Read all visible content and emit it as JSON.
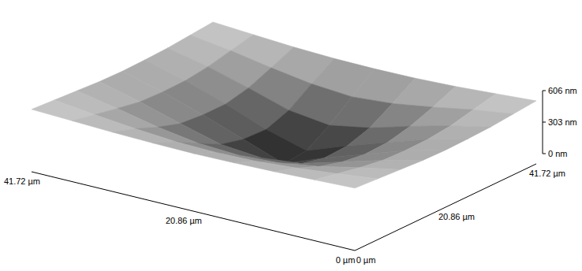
{
  "chart_data": {
    "type": "surface",
    "x": [
      0,
      5.215,
      10.43,
      15.645,
      20.86,
      26.075,
      31.29,
      36.505,
      41.72
    ],
    "y": [
      0,
      5.215,
      10.43,
      15.645,
      20.86,
      26.075,
      31.29,
      36.505,
      41.72
    ],
    "heights": [
      [
        600,
        585,
        570,
        560,
        555,
        560,
        570,
        585,
        600
      ],
      [
        585,
        540,
        500,
        470,
        460,
        470,
        500,
        540,
        585
      ],
      [
        570,
        495,
        410,
        350,
        330,
        350,
        410,
        495,
        570
      ],
      [
        555,
        460,
        350,
        240,
        200,
        235,
        340,
        455,
        555
      ],
      [
        550,
        450,
        320,
        190,
        40,
        180,
        320,
        445,
        550
      ],
      [
        555,
        455,
        330,
        200,
        60,
        170,
        320,
        450,
        555
      ],
      [
        565,
        480,
        380,
        270,
        200,
        250,
        370,
        480,
        565
      ],
      [
        585,
        530,
        460,
        400,
        370,
        400,
        460,
        530,
        585
      ],
      [
        606,
        580,
        555,
        540,
        535,
        540,
        555,
        580,
        606
      ]
    ],
    "xlim": [
      0,
      41.72
    ],
    "ylim": [
      0,
      41.72
    ],
    "zlim": [
      0,
      606
    ],
    "xticks": [
      {
        "value": 0,
        "label": "0 µm"
      },
      {
        "value": 20.86,
        "label": "20.86 µm"
      },
      {
        "value": 41.72,
        "label": "41.72 µm"
      }
    ],
    "yticks": [
      {
        "value": 0,
        "label": "0 µm"
      },
      {
        "value": 20.86,
        "label": "20.86 µm"
      },
      {
        "value": 41.72,
        "label": "41.72 µm"
      }
    ],
    "zticks": [
      {
        "value": 0,
        "label": "0 nm"
      },
      {
        "value": 303,
        "label": "303 nm"
      },
      {
        "value": 606,
        "label": "606 nm"
      }
    ]
  }
}
